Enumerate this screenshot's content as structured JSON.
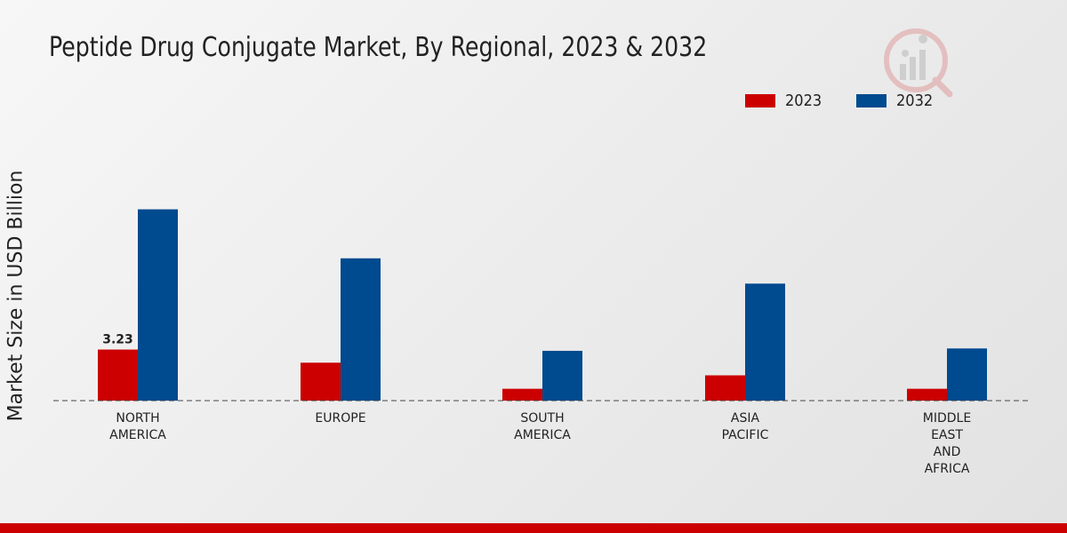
{
  "chart_data": {
    "type": "bar",
    "title": "Peptide Drug Conjugate Market, By Regional, 2023 & 2032",
    "xlabel": "",
    "ylabel": "Market Size in USD Billion",
    "categories": [
      [
        "NORTH",
        "AMERICA"
      ],
      [
        "EUROPE"
      ],
      [
        "SOUTH",
        "AMERICA"
      ],
      [
        "ASIA",
        "PACIFIC"
      ],
      [
        "MIDDLE",
        "EAST",
        "AND",
        "AFRICA"
      ]
    ],
    "series": [
      {
        "name": "2023",
        "color": "#cc0000",
        "values": [
          3.23,
          2.4,
          0.75,
          1.6,
          0.75
        ]
      },
      {
        "name": "2032",
        "color": "#004a8f",
        "values": [
          12.1,
          9.0,
          3.15,
          7.4,
          3.3
        ]
      }
    ],
    "data_labels": [
      {
        "series": 0,
        "index": 0,
        "text": "3.23"
      }
    ],
    "ylim": [
      0,
      20
    ],
    "grid": false,
    "legend_position": "top-right"
  }
}
